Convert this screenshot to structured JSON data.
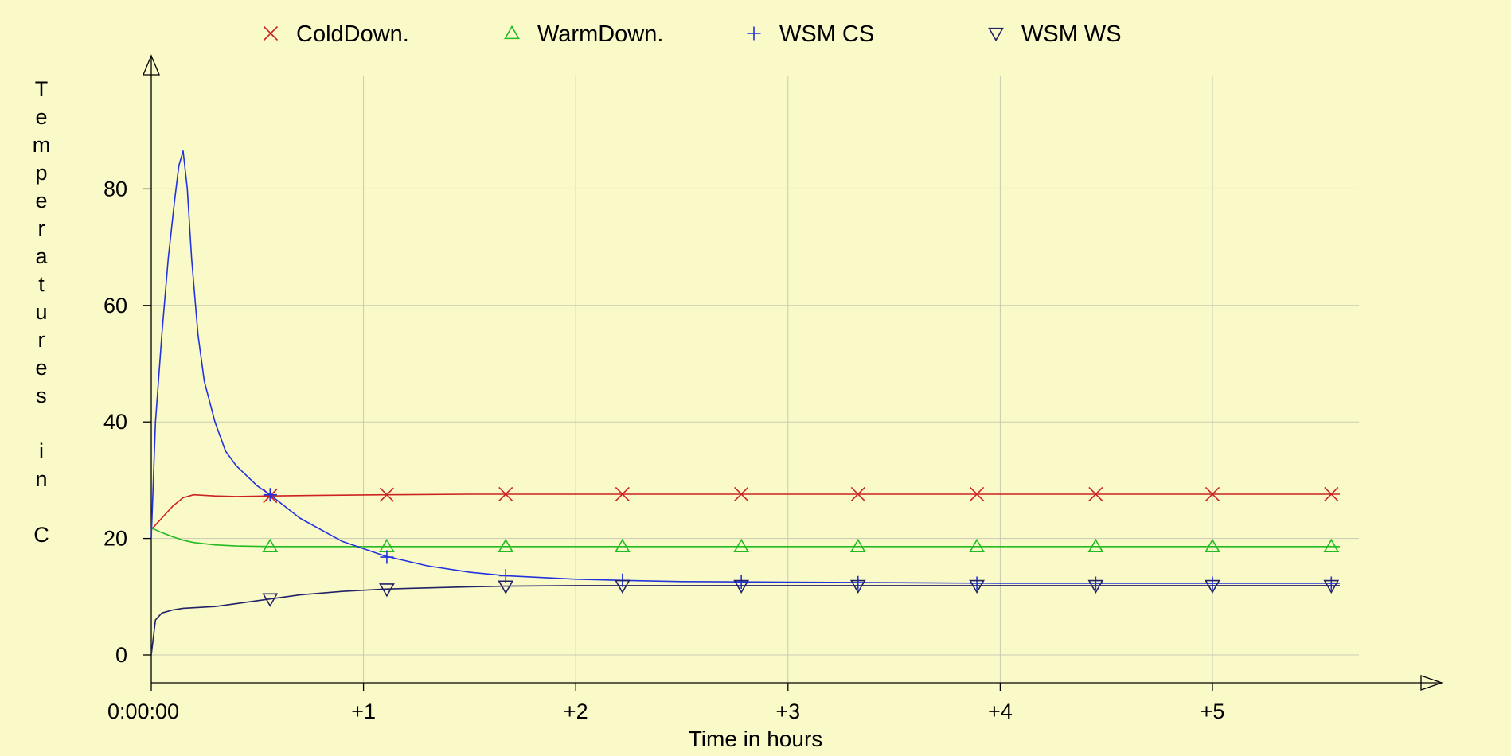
{
  "chart_data": {
    "type": "line",
    "xlabel": "Time in hours",
    "ylabel": "Temperatures in C",
    "x_tick_labels": [
      "0:00:00",
      "+1",
      "+2",
      "+3",
      "+4",
      "+5"
    ],
    "x_tick_values": [
      0,
      1,
      2,
      3,
      4,
      5
    ],
    "y_ticks": [
      0,
      20,
      40,
      60,
      80
    ],
    "xlim": [
      0,
      5.7
    ],
    "ylim": [
      0,
      100
    ],
    "grid": true,
    "legend_position": "top",
    "x_unit": "hours",
    "series": [
      {
        "name": "ColdDown.",
        "color": "#cc2222",
        "marker": "x",
        "x": [
          0,
          0.05,
          0.1,
          0.15,
          0.2,
          0.3,
          0.4,
          0.56,
          0.8,
          1.1,
          1.5,
          2.0,
          2.5,
          3.0,
          3.5,
          4.0,
          4.5,
          5.0,
          5.6
        ],
        "y": [
          21.5,
          23.5,
          25.5,
          27,
          27.5,
          27.3,
          27.2,
          27.3,
          27.4,
          27.5,
          27.6,
          27.6,
          27.6,
          27.6,
          27.6,
          27.6,
          27.6,
          27.6,
          27.6
        ],
        "markers_x": [
          0.56,
          1.11,
          1.67,
          2.22,
          2.78,
          3.33,
          3.89,
          4.45,
          5.0,
          5.56
        ],
        "markers_y": [
          27.3,
          27.5,
          27.6,
          27.6,
          27.6,
          27.6,
          27.6,
          27.6,
          27.6,
          27.6
        ]
      },
      {
        "name": "WarmDown.",
        "color": "#22bb22",
        "marker": "triangle-up",
        "x": [
          0,
          0.05,
          0.1,
          0.15,
          0.2,
          0.3,
          0.4,
          0.56,
          0.8,
          1.1,
          1.5,
          2.0,
          2.5,
          3.0,
          3.5,
          4.0,
          4.5,
          5.0,
          5.6
        ],
        "y": [
          21.8,
          21.0,
          20.3,
          19.7,
          19.3,
          18.9,
          18.7,
          18.6,
          18.6,
          18.6,
          18.6,
          18.6,
          18.6,
          18.6,
          18.6,
          18.6,
          18.6,
          18.6,
          18.6
        ],
        "markers_x": [
          0.56,
          1.11,
          1.67,
          2.22,
          2.78,
          3.33,
          3.89,
          4.45,
          5.0,
          5.56
        ],
        "markers_y": [
          18.6,
          18.6,
          18.6,
          18.6,
          18.6,
          18.6,
          18.6,
          18.6,
          18.6,
          18.6
        ]
      },
      {
        "name": "WSM CS",
        "color": "#2233dd",
        "marker": "plus",
        "x": [
          0,
          0.02,
          0.05,
          0.08,
          0.11,
          0.13,
          0.15,
          0.17,
          0.19,
          0.22,
          0.25,
          0.3,
          0.35,
          0.4,
          0.5,
          0.56,
          0.7,
          0.9,
          1.1,
          1.3,
          1.5,
          1.67,
          2.0,
          2.22,
          2.5,
          3.0,
          3.5,
          4.0,
          4.5,
          5.0,
          5.6
        ],
        "y": [
          20,
          40,
          55,
          68,
          78,
          84,
          86.5,
          80,
          68,
          55,
          47,
          40,
          35,
          32.5,
          29,
          27.5,
          23.5,
          19.5,
          17,
          15.3,
          14.2,
          13.6,
          13.0,
          12.8,
          12.6,
          12.5,
          12.4,
          12.3,
          12.3,
          12.3,
          12.3
        ],
        "markers_x": [
          0.56,
          1.11,
          1.67,
          2.22,
          2.78,
          3.33,
          3.89,
          4.45,
          5.0,
          5.56
        ],
        "markers_y": [
          27.5,
          16.8,
          13.6,
          12.8,
          12.5,
          12.4,
          12.3,
          12.3,
          12.3,
          12.3
        ]
      },
      {
        "name": "WSM WS",
        "color": "#222266",
        "marker": "triangle-down",
        "x": [
          0,
          0.02,
          0.05,
          0.1,
          0.15,
          0.2,
          0.3,
          0.4,
          0.56,
          0.7,
          0.9,
          1.1,
          1.3,
          1.5,
          1.67,
          2.0,
          2.5,
          3.0,
          3.5,
          4.0,
          4.5,
          5.0,
          5.6
        ],
        "y": [
          0,
          6,
          7.2,
          7.7,
          8.0,
          8.1,
          8.3,
          8.8,
          9.6,
          10.3,
          10.9,
          11.3,
          11.5,
          11.7,
          11.8,
          11.9,
          11.9,
          11.9,
          11.9,
          11.9,
          11.9,
          11.9,
          11.9
        ],
        "markers_x": [
          0.56,
          1.11,
          1.67,
          2.22,
          2.78,
          3.33,
          3.89,
          4.45,
          5.0,
          5.56
        ],
        "markers_y": [
          9.6,
          11.3,
          11.8,
          11.9,
          11.9,
          11.9,
          11.9,
          11.9,
          11.9,
          11.9
        ]
      }
    ]
  }
}
